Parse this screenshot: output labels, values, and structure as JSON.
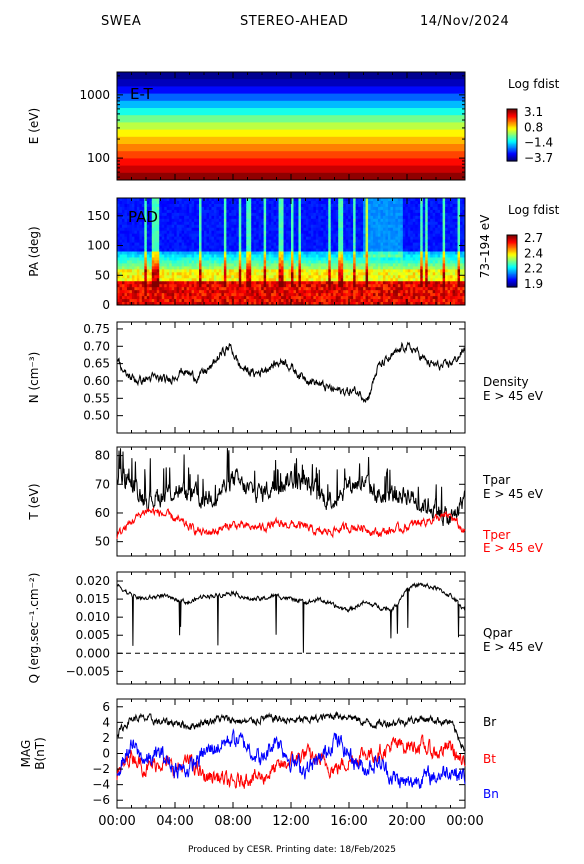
{
  "header": {
    "instrument": "SWEA",
    "spacecraft": "STEREO-AHEAD",
    "date": "14/Nov/2024"
  },
  "footer": {
    "text": "Produced by CESR.   Printing date: 18/Feb/2025"
  },
  "x_axis": {
    "ticks": [
      "00:00",
      "04:00",
      "08:00",
      "12:00",
      "16:00",
      "20:00",
      "00:00"
    ]
  },
  "chart_data": [
    {
      "type": "heatmap",
      "panel_label": "E-T",
      "ylabel": "E (eV)",
      "yscale": "log",
      "yticks": [
        "1000",
        "100"
      ],
      "colorbar": {
        "title": "Log fdist",
        "ticks": [
          "3.1",
          "0.8",
          "−1.4",
          "−3.7"
        ],
        "range": [
          -3.7,
          3.1
        ]
      },
      "energy_bands_eV": [
        1950,
        1500,
        1150,
        880,
        680,
        520,
        400,
        310,
        240,
        185,
        142,
        110,
        85,
        66,
        52
      ],
      "band_log_fdist": [
        -3.6,
        -3.3,
        -2.8,
        -2.2,
        -1.6,
        -1.0,
        -0.4,
        0.1,
        0.6,
        1.0,
        1.4,
        1.8,
        2.2,
        2.6,
        3.0
      ]
    },
    {
      "type": "heatmap",
      "panel_label": "PAD",
      "ylabel": "PA (deg)",
      "yticks": [
        "150",
        "100",
        "50",
        "0"
      ],
      "ylim": [
        0,
        180
      ],
      "side_label": "73–194 eV",
      "colorbar": {
        "title": "Log fdist",
        "ticks": [
          "2.7",
          "2.4",
          "2.2",
          "1.9"
        ],
        "range": [
          1.9,
          2.7
        ]
      }
    },
    {
      "type": "line",
      "ylabel": "N (cm⁻³)",
      "yticks": [
        "0.75",
        "0.70",
        "0.65",
        "0.60",
        "0.55",
        "0.50"
      ],
      "ylim": [
        0.45,
        0.77
      ],
      "series": [
        {
          "name": "Density",
          "name2": "E > 45 eV",
          "color": "#000000",
          "anchors": [
            [
              0,
              0.67
            ],
            [
              0.5,
              0.62
            ],
            [
              1.5,
              0.6
            ],
            [
              2.5,
              0.61
            ],
            [
              3.5,
              0.6
            ],
            [
              4.5,
              0.63
            ],
            [
              5.5,
              0.61
            ],
            [
              6.5,
              0.64
            ],
            [
              7.2,
              0.68
            ],
            [
              7.8,
              0.7
            ],
            [
              8.5,
              0.64
            ],
            [
              9.5,
              0.62
            ],
            [
              10.5,
              0.64
            ],
            [
              11.5,
              0.66
            ],
            [
              12.5,
              0.62
            ],
            [
              13.5,
              0.6
            ],
            [
              14.5,
              0.58
            ],
            [
              15.5,
              0.57
            ],
            [
              16.5,
              0.57
            ],
            [
              17.3,
              0.55
            ],
            [
              18,
              0.64
            ],
            [
              19,
              0.67
            ],
            [
              19.8,
              0.7
            ],
            [
              20.5,
              0.69
            ],
            [
              21.5,
              0.65
            ],
            [
              22.5,
              0.64
            ],
            [
              23.3,
              0.66
            ],
            [
              24,
              0.69
            ]
          ]
        }
      ]
    },
    {
      "type": "line",
      "ylabel": "T (eV)",
      "yticks": [
        "80",
        "70",
        "60",
        "50"
      ],
      "ylim": [
        45,
        83
      ],
      "series": [
        {
          "name": "Tpar",
          "name2": "E > 45 eV",
          "color": "#000000",
          "anchors": [
            [
              0,
              74
            ],
            [
              1,
              70
            ],
            [
              2,
              65
            ],
            [
              3,
              66
            ],
            [
              4,
              68
            ],
            [
              5,
              66
            ],
            [
              6,
              65
            ],
            [
              7,
              67
            ],
            [
              8,
              72
            ],
            [
              9,
              68
            ],
            [
              10,
              67
            ],
            [
              11,
              70
            ],
            [
              12,
              72
            ],
            [
              13,
              70
            ],
            [
              14,
              66
            ],
            [
              15,
              65
            ],
            [
              16,
              70
            ],
            [
              17,
              71
            ],
            [
              18,
              66
            ],
            [
              19,
              66
            ],
            [
              20,
              67
            ],
            [
              21,
              63
            ],
            [
              22,
              62
            ],
            [
              23,
              57
            ],
            [
              24,
              66
            ]
          ]
        },
        {
          "name": "Tper",
          "name2": "E > 45 eV",
          "color": "#ff0000",
          "anchors": [
            [
              0,
              52
            ],
            [
              1,
              57
            ],
            [
              2,
              61
            ],
            [
              3,
              60
            ],
            [
              4,
              58
            ],
            [
              5,
              55
            ],
            [
              6,
              53
            ],
            [
              7,
              54
            ],
            [
              8,
              56
            ],
            [
              9,
              55
            ],
            [
              10,
              55
            ],
            [
              11,
              56
            ],
            [
              12,
              56
            ],
            [
              13,
              55
            ],
            [
              14,
              53
            ],
            [
              15,
              54
            ],
            [
              16,
              55
            ],
            [
              17,
              55
            ],
            [
              18,
              53
            ],
            [
              19,
              54
            ],
            [
              20,
              55
            ],
            [
              21,
              57
            ],
            [
              22,
              58
            ],
            [
              23,
              59
            ],
            [
              24,
              53
            ]
          ]
        }
      ]
    },
    {
      "type": "line",
      "ylabel": "Q (erg.sec⁻¹.cm⁻²)",
      "yticks": [
        "0.020",
        "0.015",
        "0.010",
        "0.005",
        "0.000",
        "−0.005"
      ],
      "ylim": [
        -0.0085,
        0.0225
      ],
      "reference_line": 0,
      "series": [
        {
          "name": "Qpar",
          "name2": "E > 45 eV",
          "color": "#000000",
          "anchors": [
            [
              0,
              0.019
            ],
            [
              1,
              0.016
            ],
            [
              2,
              0.015
            ],
            [
              3,
              0.016
            ],
            [
              4,
              0.015
            ],
            [
              5,
              0.014
            ],
            [
              6,
              0.016
            ],
            [
              7,
              0.016
            ],
            [
              8,
              0.017
            ],
            [
              9,
              0.015
            ],
            [
              10,
              0.015
            ],
            [
              11,
              0.016
            ],
            [
              12,
              0.015
            ],
            [
              13,
              0.014
            ],
            [
              14,
              0.015
            ],
            [
              15,
              0.013
            ],
            [
              16,
              0.012
            ],
            [
              17,
              0.014
            ],
            [
              18,
              0.013
            ],
            [
              19,
              0.012
            ],
            [
              20,
              0.018
            ],
            [
              21,
              0.019
            ],
            [
              22,
              0.018
            ],
            [
              23,
              0.016
            ],
            [
              24,
              0.012
            ]
          ]
        }
      ]
    },
    {
      "type": "line",
      "ylabel": "MAG B(nT)",
      "yticks": [
        "6",
        "4",
        "2",
        "0",
        "−2",
        "−4",
        "−6"
      ],
      "ylim": [
        -7,
        7
      ],
      "series": [
        {
          "name": "Br",
          "color": "#000000",
          "anchors": [
            [
              0,
              2.5
            ],
            [
              1,
              4.5
            ],
            [
              2,
              4.5
            ],
            [
              3,
              4.0
            ],
            [
              4,
              4.0
            ],
            [
              5,
              3.5
            ],
            [
              6,
              4.0
            ],
            [
              7,
              4.5
            ],
            [
              8,
              4.3
            ],
            [
              9,
              4.0
            ],
            [
              10,
              4.5
            ],
            [
              11,
              4.5
            ],
            [
              12,
              4.2
            ],
            [
              13,
              4.3
            ],
            [
              14,
              4.5
            ],
            [
              15,
              5.0
            ],
            [
              16,
              4.8
            ],
            [
              17,
              4.0
            ],
            [
              18,
              3.8
            ],
            [
              19,
              4.0
            ],
            [
              20,
              4.2
            ],
            [
              21,
              4.5
            ],
            [
              22,
              4.3
            ],
            [
              23,
              4.0
            ],
            [
              24,
              0.5
            ]
          ]
        },
        {
          "name": "Bt",
          "color": "#ff0000",
          "anchors": [
            [
              0,
              -3
            ],
            [
              1,
              0
            ],
            [
              2,
              -2
            ],
            [
              3,
              -1
            ],
            [
              4,
              -2
            ],
            [
              5,
              -1
            ],
            [
              6,
              -3
            ],
            [
              7,
              -3
            ],
            [
              8,
              -4
            ],
            [
              9,
              -3
            ],
            [
              10,
              -3
            ],
            [
              11,
              -2
            ],
            [
              12,
              -1
            ],
            [
              13,
              0
            ],
            [
              14,
              -1
            ],
            [
              15,
              -2
            ],
            [
              16,
              -1
            ],
            [
              17,
              0
            ],
            [
              18,
              0
            ],
            [
              19,
              1
            ],
            [
              20,
              1
            ],
            [
              21,
              1
            ],
            [
              22,
              0
            ],
            [
              23,
              1
            ],
            [
              24,
              -2
            ]
          ]
        },
        {
          "name": "Bn",
          "color": "#0000ff",
          "anchors": [
            [
              0,
              -2
            ],
            [
              1,
              1
            ],
            [
              2,
              -1
            ],
            [
              3,
              0
            ],
            [
              4,
              -2
            ],
            [
              5,
              -2
            ],
            [
              6,
              0
            ],
            [
              7,
              1
            ],
            [
              8,
              2
            ],
            [
              9,
              1
            ],
            [
              10,
              -1
            ],
            [
              11,
              2
            ],
            [
              12,
              -1
            ],
            [
              13,
              -2
            ],
            [
              14,
              -1
            ],
            [
              15,
              2
            ],
            [
              16,
              0
            ],
            [
              17,
              -2
            ],
            [
              18,
              -1
            ],
            [
              19,
              -3
            ],
            [
              20,
              -4
            ],
            [
              21,
              -3
            ],
            [
              22,
              -3
            ],
            [
              23,
              -2
            ],
            [
              24,
              -3
            ]
          ]
        }
      ]
    }
  ]
}
